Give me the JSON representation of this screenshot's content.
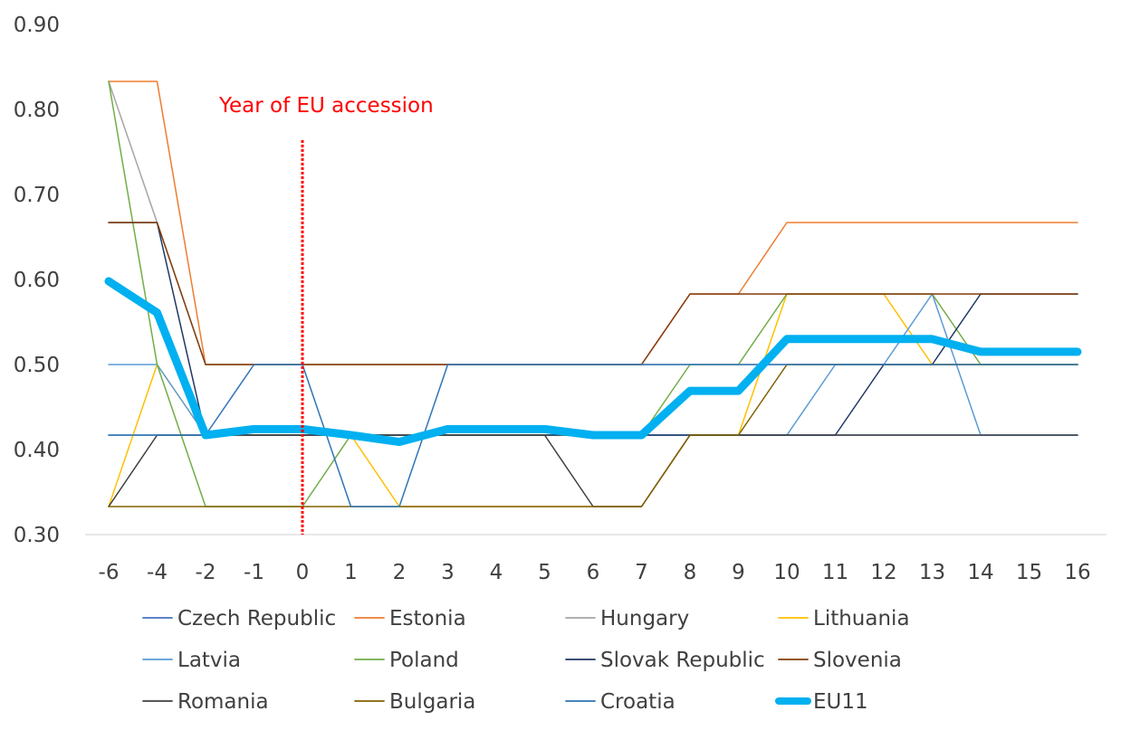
{
  "chart_data": {
    "type": "line",
    "title": "",
    "xlabel": "",
    "ylabel": "",
    "ylim": [
      0.3,
      0.9
    ],
    "yticks": [
      "0.30",
      "0.40",
      "0.50",
      "0.60",
      "0.70",
      "0.80",
      "0.90"
    ],
    "categories": [
      "-6",
      "-4",
      "-2",
      "-1",
      "0",
      "1",
      "2",
      "3",
      "4",
      "5",
      "6",
      "7",
      "8",
      "9",
      "10",
      "11",
      "12",
      "13",
      "14",
      "15",
      "16"
    ],
    "grid": false,
    "legend_position": "bottom",
    "annotation": {
      "text": "Year of EU accession",
      "at_category": "0",
      "color": "#ff0000"
    },
    "series": [
      {
        "name": "Czech Republic",
        "color": "#4472c4",
        "width": 1.5,
        "values": [
          0.417,
          0.417,
          0.417,
          0.417,
          0.417,
          0.417,
          0.417,
          0.417,
          0.417,
          0.417,
          0.417,
          0.417,
          0.417,
          0.417,
          0.417,
          0.417,
          0.417,
          0.417,
          0.417,
          0.417,
          0.417
        ]
      },
      {
        "name": "Estonia",
        "color": "#ed7d31",
        "width": 1.5,
        "values": [
          0.833,
          0.833,
          0.5,
          0.5,
          0.5,
          0.5,
          0.5,
          0.5,
          0.5,
          0.5,
          0.5,
          0.5,
          0.583,
          0.583,
          0.667,
          0.667,
          0.667,
          0.667,
          0.667,
          0.667,
          0.667
        ]
      },
      {
        "name": "Hungary",
        "color": "#a5a5a5",
        "width": 1.5,
        "values": [
          0.833,
          0.667,
          0.5,
          0.5,
          0.5,
          0.5,
          0.5,
          0.5,
          0.5,
          0.5,
          0.5,
          0.5,
          0.5,
          0.5,
          0.5,
          0.5,
          0.5,
          0.5,
          0.5,
          0.5,
          0.5
        ]
      },
      {
        "name": "Lithuania",
        "color": "#ffc000",
        "width": 1.5,
        "values": [
          0.333,
          0.5,
          0.417,
          0.417,
          0.417,
          0.417,
          0.333,
          0.333,
          0.333,
          0.333,
          0.333,
          0.333,
          0.417,
          0.417,
          0.583,
          0.583,
          0.583,
          0.5,
          0.5,
          0.5,
          0.5
        ]
      },
      {
        "name": "Latvia",
        "color": "#5b9bd5",
        "width": 1.5,
        "values": [
          0.5,
          0.5,
          0.417,
          0.417,
          0.417,
          0.417,
          0.417,
          0.417,
          0.417,
          0.417,
          0.417,
          0.417,
          0.417,
          0.417,
          0.417,
          0.5,
          0.5,
          0.583,
          0.417,
          0.417,
          0.417
        ]
      },
      {
        "name": "Poland",
        "color": "#70ad47",
        "width": 1.5,
        "values": [
          0.833,
          0.5,
          0.333,
          0.333,
          0.333,
          0.417,
          0.417,
          0.417,
          0.417,
          0.417,
          0.417,
          0.417,
          0.5,
          0.5,
          0.583,
          0.583,
          0.583,
          0.583,
          0.5,
          0.5,
          0.5
        ]
      },
      {
        "name": "Slovak Republic",
        "color": "#203864",
        "width": 1.5,
        "values": [
          0.667,
          0.667,
          0.417,
          0.417,
          0.417,
          0.417,
          0.417,
          0.417,
          0.417,
          0.417,
          0.417,
          0.417,
          0.417,
          0.417,
          0.417,
          0.417,
          0.5,
          0.5,
          0.583,
          0.583,
          0.583
        ]
      },
      {
        "name": "Slovenia",
        "color": "#843c0c",
        "width": 1.5,
        "values": [
          0.667,
          0.667,
          0.5,
          0.5,
          0.5,
          0.5,
          0.5,
          0.5,
          0.5,
          0.5,
          0.5,
          0.5,
          0.583,
          0.583,
          0.583,
          0.583,
          0.583,
          0.583,
          0.583,
          0.583,
          0.583
        ]
      },
      {
        "name": "Romania",
        "color": "#404040",
        "width": 1.5,
        "values": [
          0.333,
          0.417,
          0.417,
          0.417,
          0.417,
          0.417,
          0.417,
          0.417,
          0.417,
          0.417,
          0.333,
          0.333,
          0.417,
          0.417,
          0.417,
          0.417,
          0.417,
          0.417,
          0.417,
          0.417,
          0.417
        ]
      },
      {
        "name": "Bulgaria",
        "color": "#806000",
        "width": 1.5,
        "values": [
          0.333,
          0.333,
          0.333,
          0.333,
          0.333,
          0.333,
          0.333,
          0.333,
          0.333,
          0.333,
          0.333,
          0.333,
          0.417,
          0.417,
          0.5,
          0.5,
          0.5,
          0.5,
          0.5,
          0.5,
          0.5
        ]
      },
      {
        "name": "Croatia",
        "color": "#2e75b6",
        "width": 1.5,
        "values": [
          0.417,
          0.417,
          0.417,
          0.5,
          0.5,
          0.333,
          0.333,
          0.5,
          0.5,
          0.5,
          0.5,
          0.5,
          0.5,
          0.5,
          0.5,
          0.5,
          0.5,
          0.5,
          0.5,
          0.5,
          0.5
        ]
      },
      {
        "name": "EU11",
        "color": "#00b0f0",
        "width": 9,
        "values": [
          0.598,
          0.561,
          0.417,
          0.424,
          0.424,
          0.417,
          0.409,
          0.424,
          0.424,
          0.424,
          0.417,
          0.417,
          0.469,
          0.469,
          0.53,
          0.53,
          0.53,
          0.53,
          0.515,
          0.515,
          0.515
        ]
      }
    ]
  }
}
